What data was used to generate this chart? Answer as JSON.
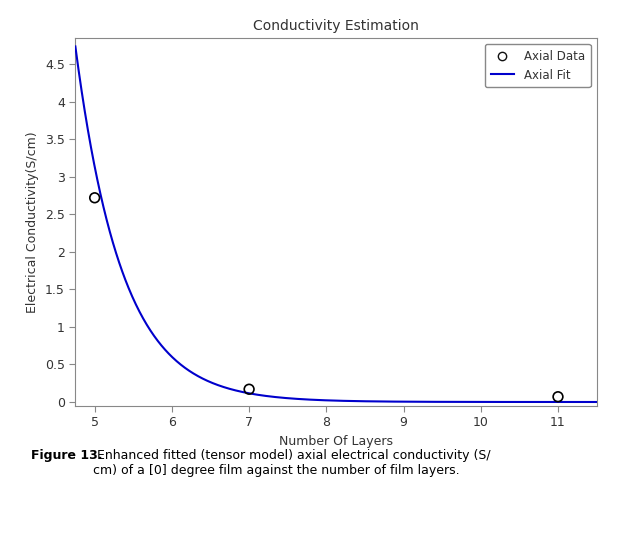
{
  "title": "Conductivity Estimation",
  "xlabel": "Number Of Layers",
  "ylabel": "Electrical Conductivity(S/cm)",
  "xlim": [
    4.75,
    11.5
  ],
  "ylim": [
    -0.05,
    4.85
  ],
  "xticks": [
    5,
    6,
    7,
    8,
    9,
    10,
    11
  ],
  "yticks": [
    0,
    0.5,
    1,
    1.5,
    2,
    2.5,
    3,
    3.5,
    4,
    4.5
  ],
  "data_points_x": [
    5,
    7,
    11
  ],
  "data_points_y": [
    2.72,
    0.17,
    0.07
  ],
  "fit_x_start": 4.75,
  "fit_x_end": 11.5,
  "fit_a": 12000.0,
  "fit_b": -1.65,
  "line_color": "#0000CC",
  "data_marker": "o",
  "data_marker_color": "none",
  "data_marker_edgecolor": "#000000",
  "data_marker_size": 7,
  "legend_data_label": "Axial Data",
  "legend_fit_label": "Axial Fit",
  "background_color": "#ffffff",
  "title_fontsize": 10,
  "label_fontsize": 9,
  "tick_fontsize": 9,
  "caption_bold": "Figure 13.",
  "caption_normal": " Enhanced fitted (tensor model) axial electrical conductivity (S/\ncm) of a [0] degree film against the number of film layers."
}
